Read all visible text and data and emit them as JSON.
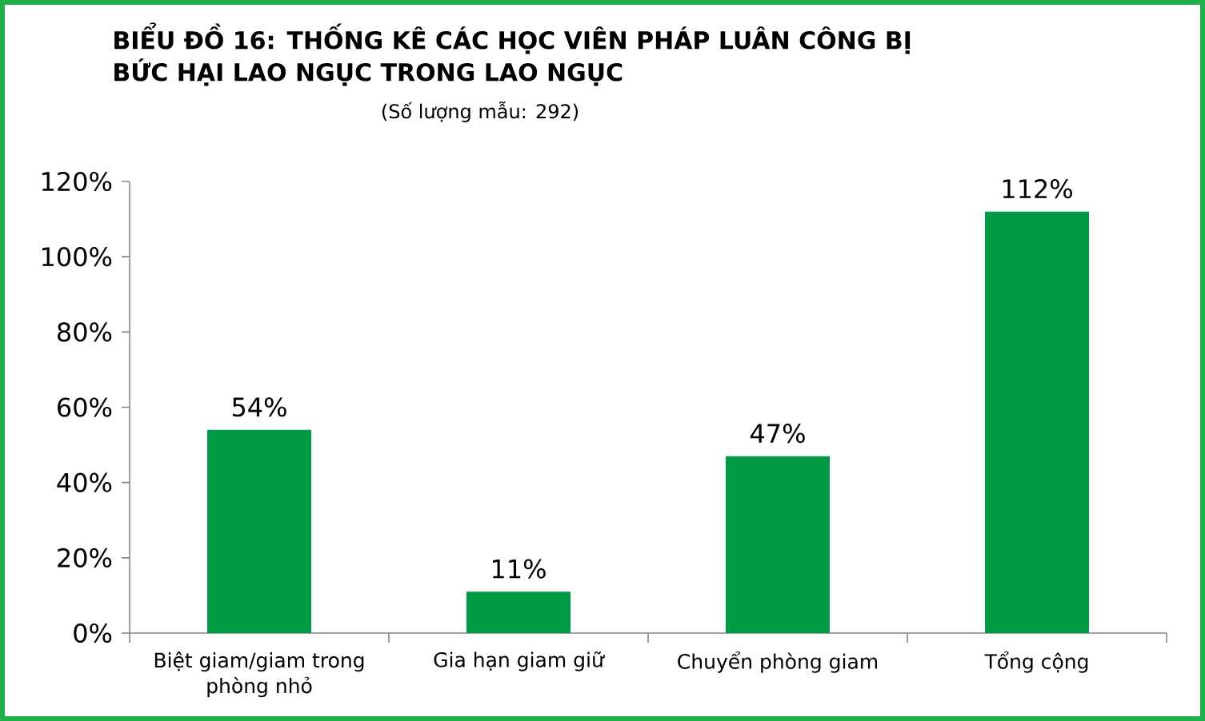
{
  "chart_data": {
    "type": "bar",
    "title": "BIỂU ĐỒ 16: THỐNG KÊ CÁC HỌC VIÊN PHÁP LUÂN CÔNG BỊ BỨC HẠI LAO NGỤC TRONG LAO NGỤC",
    "subtitle": "(Số lượng mẫu: 292)",
    "categories": [
      "Biệt giam/giam trong phòng nhỏ",
      "Gia hạn giam giữ",
      "Chuyển phòng giam",
      "Tổng cộng"
    ],
    "values": [
      54,
      11,
      47,
      112
    ],
    "value_labels": [
      "54%",
      "11%",
      "47%",
      "112%"
    ],
    "color": "#009a44",
    "ylim": [
      0,
      120
    ],
    "yticks": [
      {
        "value": 0,
        "label": "0%"
      },
      {
        "value": 20,
        "label": "20%"
      },
      {
        "value": 40,
        "label": "40%"
      },
      {
        "value": 60,
        "label": "60%"
      },
      {
        "value": 80,
        "label": "80%"
      },
      {
        "value": 100,
        "label": "100%"
      },
      {
        "value": 120,
        "label": "120%"
      }
    ]
  }
}
